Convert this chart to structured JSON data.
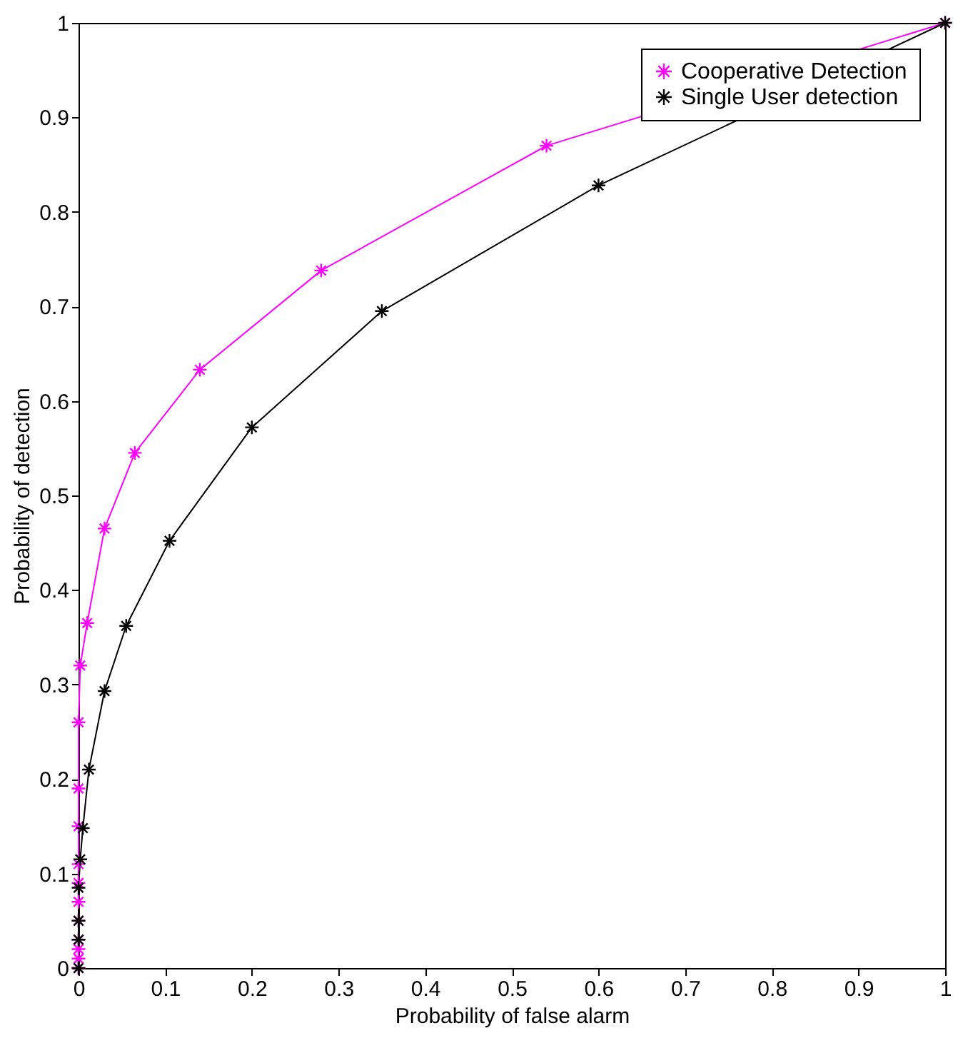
{
  "chart_data": {
    "type": "line",
    "xlabel": "Probability of false alarm",
    "ylabel": "Probability of detection",
    "xlim": [
      0,
      1
    ],
    "ylim": [
      0,
      1
    ],
    "xticks": [
      0,
      0.1,
      0.2,
      0.3,
      0.4,
      0.5,
      0.6,
      0.7,
      0.8,
      0.9,
      1
    ],
    "yticks": [
      0,
      0.1,
      0.2,
      0.3,
      0.4,
      0.5,
      0.6,
      0.7,
      0.8,
      0.9,
      1
    ],
    "grid": false,
    "legend": "top right",
    "marker": "cross",
    "line_style": "solid",
    "series": [
      {
        "name": "Cooperative Detection",
        "color": "#ff00ff",
        "x": [
          0,
          0,
          0,
          0,
          0,
          0,
          0,
          0,
          0,
          0,
          0,
          0.002,
          0.01,
          0.03,
          0.065,
          0.14,
          0.28,
          0.54,
          1
        ],
        "values": [
          0,
          0.01,
          0.02,
          0.03,
          0.05,
          0.07,
          0.09,
          0.11,
          0.15,
          0.19,
          0.26,
          0.32,
          0.365,
          0.465,
          0.545,
          0.633,
          0.738,
          0.87,
          1
        ]
      },
      {
        "name": "Single User detection",
        "color": "#000000",
        "x": [
          0,
          0,
          0,
          0,
          0.002,
          0.005,
          0.012,
          0.03,
          0.055,
          0.105,
          0.2,
          0.35,
          0.6,
          1
        ],
        "values": [
          0,
          0.03,
          0.05,
          0.085,
          0.115,
          0.148,
          0.21,
          0.293,
          0.362,
          0.452,
          0.572,
          0.695,
          0.828,
          1
        ]
      }
    ]
  }
}
